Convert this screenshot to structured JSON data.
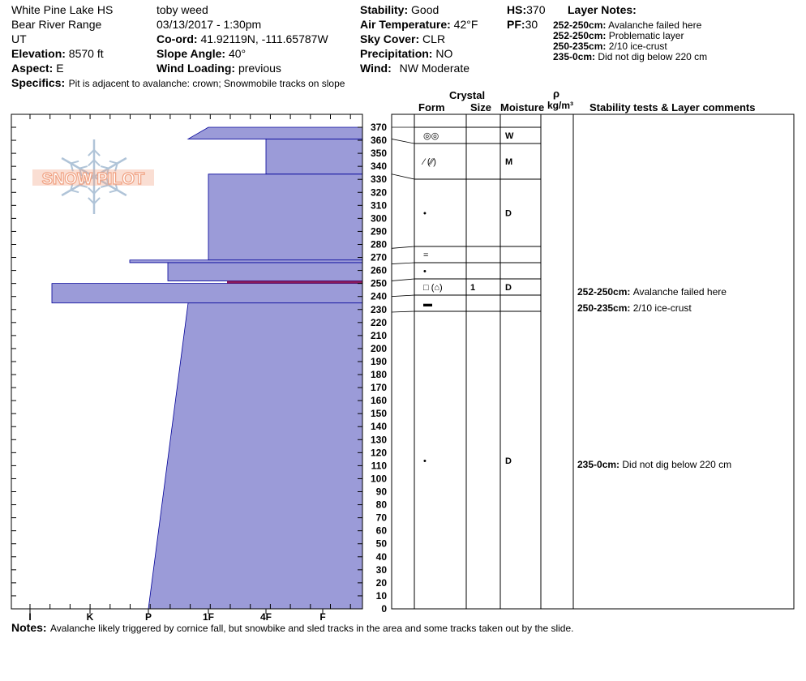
{
  "header": {
    "location": "White Pine Lake HS",
    "range": "Bear River Range",
    "state": "UT",
    "elevation_label": "Elevation:",
    "elevation_value": "8570 ft",
    "aspect_label": "Aspect:",
    "aspect_value": "E",
    "specifics_label": "Specifics:",
    "specifics_value": "Pit is adjacent to avalanche: crown; Snowmobile tracks on slope",
    "observer": "toby weed",
    "datetime": "03/13/2017 - 1:30pm",
    "coord_label": "Co-ord:",
    "coord_value": "41.92119N, -111.65787W",
    "slope_label": "Slope Angle:",
    "slope_value": "40°",
    "wind_loading_label": "Wind Loading:",
    "wind_loading_value": "previous",
    "stability_label": "Stability:",
    "stability_value": "Good",
    "air_temp_label": "Air Temperature:",
    "air_temp_value": "42°F",
    "sky_label": "Sky Cover:",
    "sky_value": "CLR",
    "precip_label": "Precipitation:",
    "precip_value": "NO",
    "wind_label": "Wind:",
    "wind_value": "NW Moderate",
    "hs_label": "HS:",
    "hs_value": "370",
    "pf_label": "PF:",
    "pf_value": "30",
    "layer_notes_title": "Layer Notes:",
    "layer_notes": [
      {
        "range": "252-250cm:",
        "text": "Avalanche failed here"
      },
      {
        "range": "252-250cm:",
        "text": "Problematic layer"
      },
      {
        "range": "250-235cm:",
        "text": "2/10 ice-crust"
      },
      {
        "range": "235-0cm:",
        "text": "Did not dig below 220 cm"
      }
    ]
  },
  "columns": {
    "crystal": "Crystal",
    "form": "Form",
    "size": "Size",
    "moisture": "Moisture",
    "rho": "ρ",
    "density_unit": "kg/m³",
    "comments": "Stability tests & Layer comments"
  },
  "logo_text": "SNOW PILOT",
  "notes_label": "Notes:",
  "notes_value": "Avalanche likely triggered by cornice fall, but snowbike and sled tracks in the area and some tracks taken out by the slide.",
  "colors": {
    "hardness_fill": "#9b9bd8",
    "hardness_stroke": "#000099",
    "weak_layer": "#8b1a5a",
    "logo": "#f0a080",
    "snowflake": "#b0c4d8"
  },
  "layer_rows": [
    {
      "top": 370,
      "bottom": 361,
      "form": "◎◎",
      "size": "",
      "moisture": "W"
    },
    {
      "top": 361,
      "bottom": 334,
      "form": "⁄ (⁄⁄)",
      "size": "",
      "moisture": "M"
    },
    {
      "top": 334,
      "bottom": 277,
      "form": "•",
      "size": "",
      "moisture": "D"
    },
    {
      "top": 277,
      "bottom": 265,
      "form": "=",
      "size": "",
      "moisture": ""
    },
    {
      "top": 265,
      "bottom": 252,
      "form": "•",
      "size": "",
      "moisture": ""
    },
    {
      "top": 252,
      "bottom": 240,
      "form": "□ (⌂)",
      "size": "1",
      "moisture": "D"
    },
    {
      "top": 240,
      "bottom": 228,
      "form": "▬",
      "size": "",
      "moisture": ""
    },
    {
      "top": 228,
      "bottom": 0,
      "form": "•",
      "size": "",
      "moisture": "D"
    }
  ],
  "comments": [
    {
      "depth": 250,
      "range": "252-250cm:",
      "text": "Avalanche failed here"
    },
    {
      "depth": 238,
      "range": "250-235cm:",
      "text": "2/10 ice-crust"
    },
    {
      "depth": 112,
      "range": "235-0cm:",
      "text": "Did not dig below 220 cm"
    }
  ],
  "chart_data": {
    "type": "area",
    "ylim": [
      0,
      370
    ],
    "depth_ticks": [
      370,
      360,
      350,
      340,
      330,
      320,
      310,
      300,
      290,
      280,
      270,
      260,
      250,
      240,
      230,
      220,
      210,
      200,
      190,
      180,
      170,
      160,
      150,
      140,
      130,
      120,
      110,
      100,
      90,
      80,
      70,
      60,
      50,
      40,
      30,
      20,
      10,
      0
    ],
    "hardness_axis": [
      "I",
      "K",
      "P",
      "1F",
      "4F",
      "F"
    ],
    "hardness_levels": [
      {
        "top": 370,
        "bottom": 361,
        "hardness_top": "1F-",
        "hardness_bottom": "1F+"
      },
      {
        "top": 361,
        "bottom": 334,
        "hardness": "4F"
      },
      {
        "top": 334,
        "bottom": 268,
        "hardness": "1F"
      },
      {
        "top": 268,
        "bottom": 266,
        "hardness": "P-"
      },
      {
        "top": 266,
        "bottom": 252,
        "hardness": "P+"
      },
      {
        "top": 252,
        "bottom": 250,
        "hardness": "1F+",
        "weak_layer": true
      },
      {
        "top": 250,
        "bottom": 235,
        "hardness": "K-"
      },
      {
        "top": 235,
        "bottom": 0,
        "hardness_top": "1F-",
        "hardness_bottom": "P"
      }
    ]
  }
}
